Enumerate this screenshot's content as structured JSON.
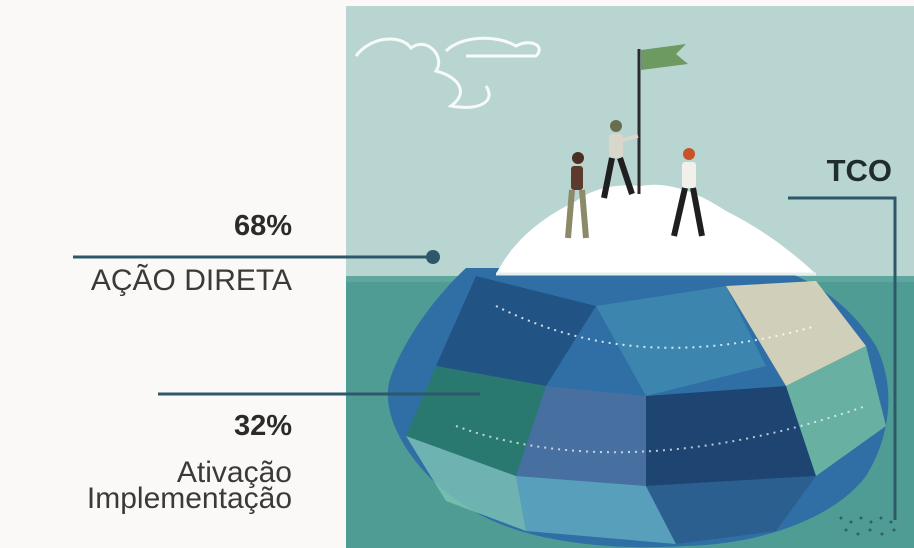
{
  "title": "TCO",
  "above": {
    "percent": "68%",
    "label": "AÇÃO DIRETA"
  },
  "below": {
    "percent": "32%",
    "label_line1": "Ativação",
    "label_line2": "Implementação"
  },
  "colors": {
    "line": "#2d5869",
    "sky": "#b9d5d1",
    "sea": "#4f9c94",
    "ice_top": "#ffffff",
    "flag": "#6d9a61"
  },
  "icons": [
    "iceberg-illustration",
    "flag-icon",
    "cloud-icon"
  ]
}
